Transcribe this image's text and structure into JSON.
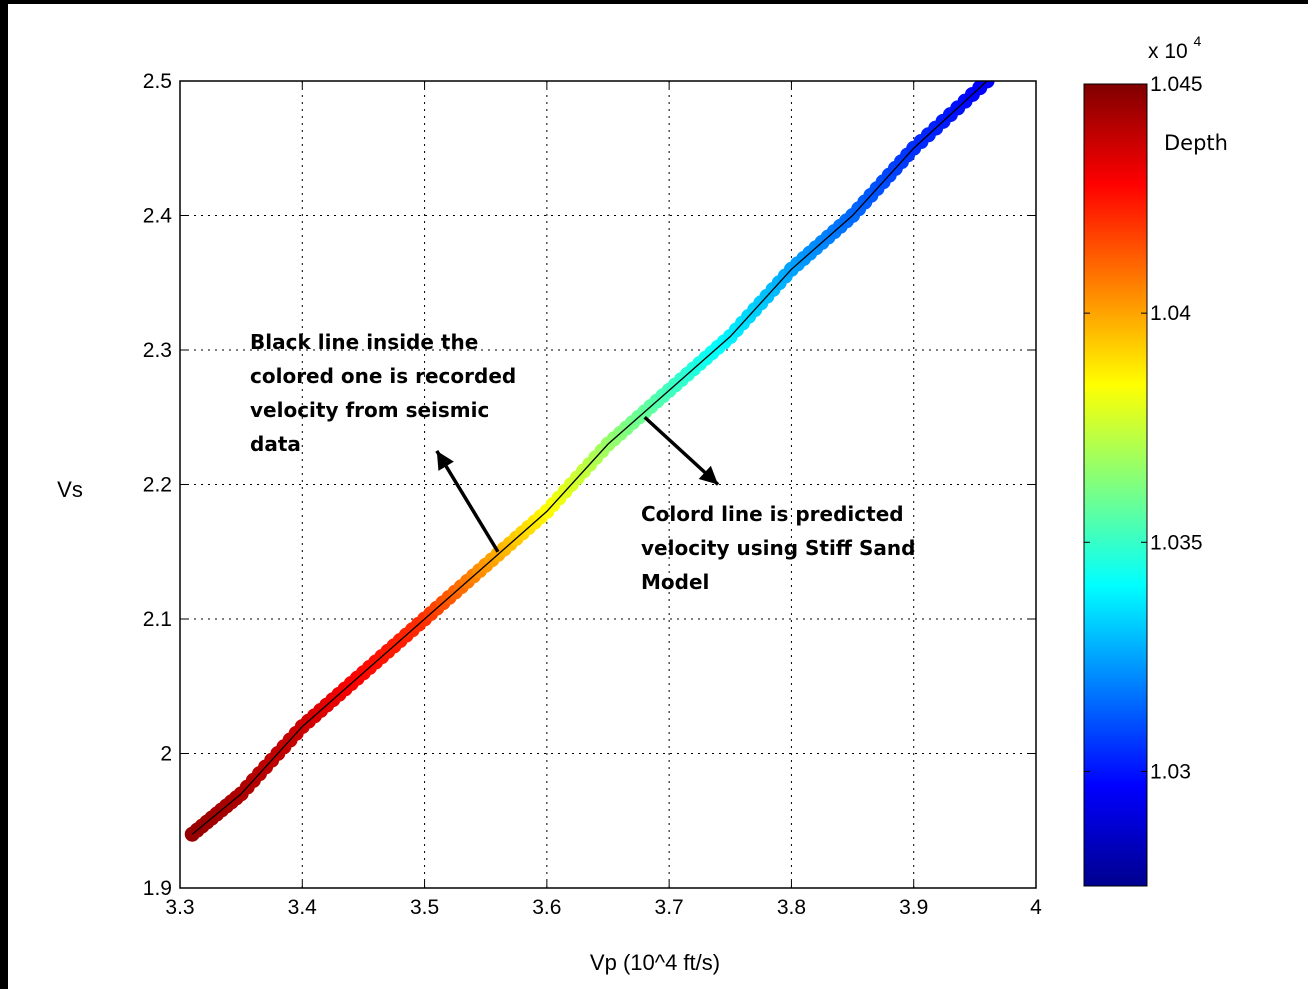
{
  "chart_data": {
    "type": "scatter",
    "xlabel": "Vp (10^4 ft/s)",
    "ylabel": "Vs",
    "xlim": [
      3.3,
      4.0
    ],
    "ylim": [
      1.9,
      2.5
    ],
    "xticks": [
      "3.3",
      "3.4",
      "3.5",
      "3.6",
      "3.7",
      "3.8",
      "3.9",
      "4"
    ],
    "yticks": [
      "1.9",
      "2",
      "2.1",
      "2.2",
      "2.3",
      "2.4",
      "2.5"
    ],
    "grid": true,
    "series": [
      {
        "description_role": "predicted",
        "x": [
          3.31,
          3.35,
          3.4,
          3.45,
          3.5,
          3.55,
          3.6,
          3.65,
          3.7,
          3.75,
          3.8,
          3.85,
          3.9,
          3.96
        ],
        "y": [
          1.94,
          1.97,
          2.02,
          2.06,
          2.1,
          2.14,
          2.18,
          2.23,
          2.27,
          2.31,
          2.36,
          2.4,
          2.45,
          2.5
        ],
        "depth": [
          10446,
          10442,
          10437,
          10427,
          10420,
          10402,
          10385,
          10367,
          10352,
          10338,
          10325,
          10315,
          10305,
          10296
        ]
      },
      {
        "description_role": "recorded",
        "x": [
          3.31,
          3.35,
          3.4,
          3.45,
          3.5,
          3.55,
          3.6,
          3.65,
          3.7,
          3.75,
          3.8,
          3.85,
          3.9,
          3.96
        ],
        "y": [
          1.94,
          1.97,
          2.02,
          2.06,
          2.1,
          2.14,
          2.18,
          2.23,
          2.27,
          2.31,
          2.36,
          2.4,
          2.45,
          2.5
        ]
      }
    ],
    "colorbar": {
      "label": "Depth",
      "exponent": "x 10",
      "exponent_power": "4",
      "range": [
        1.0275,
        1.045
      ],
      "ticks": [
        "1.045",
        "1.04",
        "1.035",
        "1.03"
      ],
      "tick_values": [
        1.045,
        1.04,
        1.035,
        1.03
      ],
      "colormap": "jet"
    },
    "annotations": [
      {
        "lines": [
          "Black line inside the",
          "colored one is recorded",
          "velocity from seismic",
          "data"
        ],
        "target": [
          3.51,
          2.225
        ],
        "from": [
          3.56,
          2.15
        ]
      },
      {
        "lines": [
          "Colord line is predicted",
          "velocity using Stiff Sand",
          "Model"
        ],
        "target": [
          3.74,
          2.2
        ],
        "from": [
          3.68,
          2.25
        ]
      }
    ]
  },
  "colors": {
    "background": "#ffffff",
    "frame": "#000000",
    "grid": "#000000",
    "recorded_line": "#000000"
  }
}
